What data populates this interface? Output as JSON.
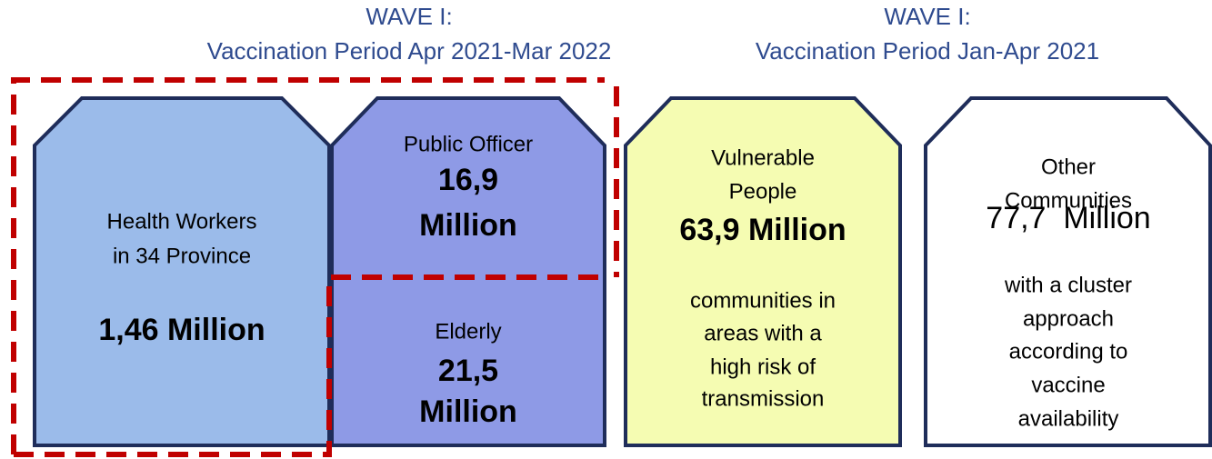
{
  "headers": [
    {
      "line1": "WAVE I:",
      "line2": "Vaccination Period Apr 2021-Mar 2022"
    },
    {
      "line1": "WAVE I:",
      "line2": "Vaccination Period Jan-Apr 2021"
    }
  ],
  "boxes": [
    {
      "lines": [
        "Health Workers",
        "in 34 Province",
        "1,46 Million"
      ]
    },
    {
      "top": [
        "Public Officer",
        "16,9",
        "Million"
      ],
      "bottom": [
        "Elderly",
        "21,5",
        "Million"
      ]
    },
    {
      "lines": [
        "Vulnerable",
        "People",
        "63,9 Million",
        "communities in",
        "areas with a",
        "high risk of",
        "transmission"
      ]
    },
    {
      "lines": [
        "Other",
        "Communities",
        "77,7  Million",
        "with a cluster",
        "approach",
        "according to",
        "vaccine",
        "availability"
      ]
    }
  ]
}
